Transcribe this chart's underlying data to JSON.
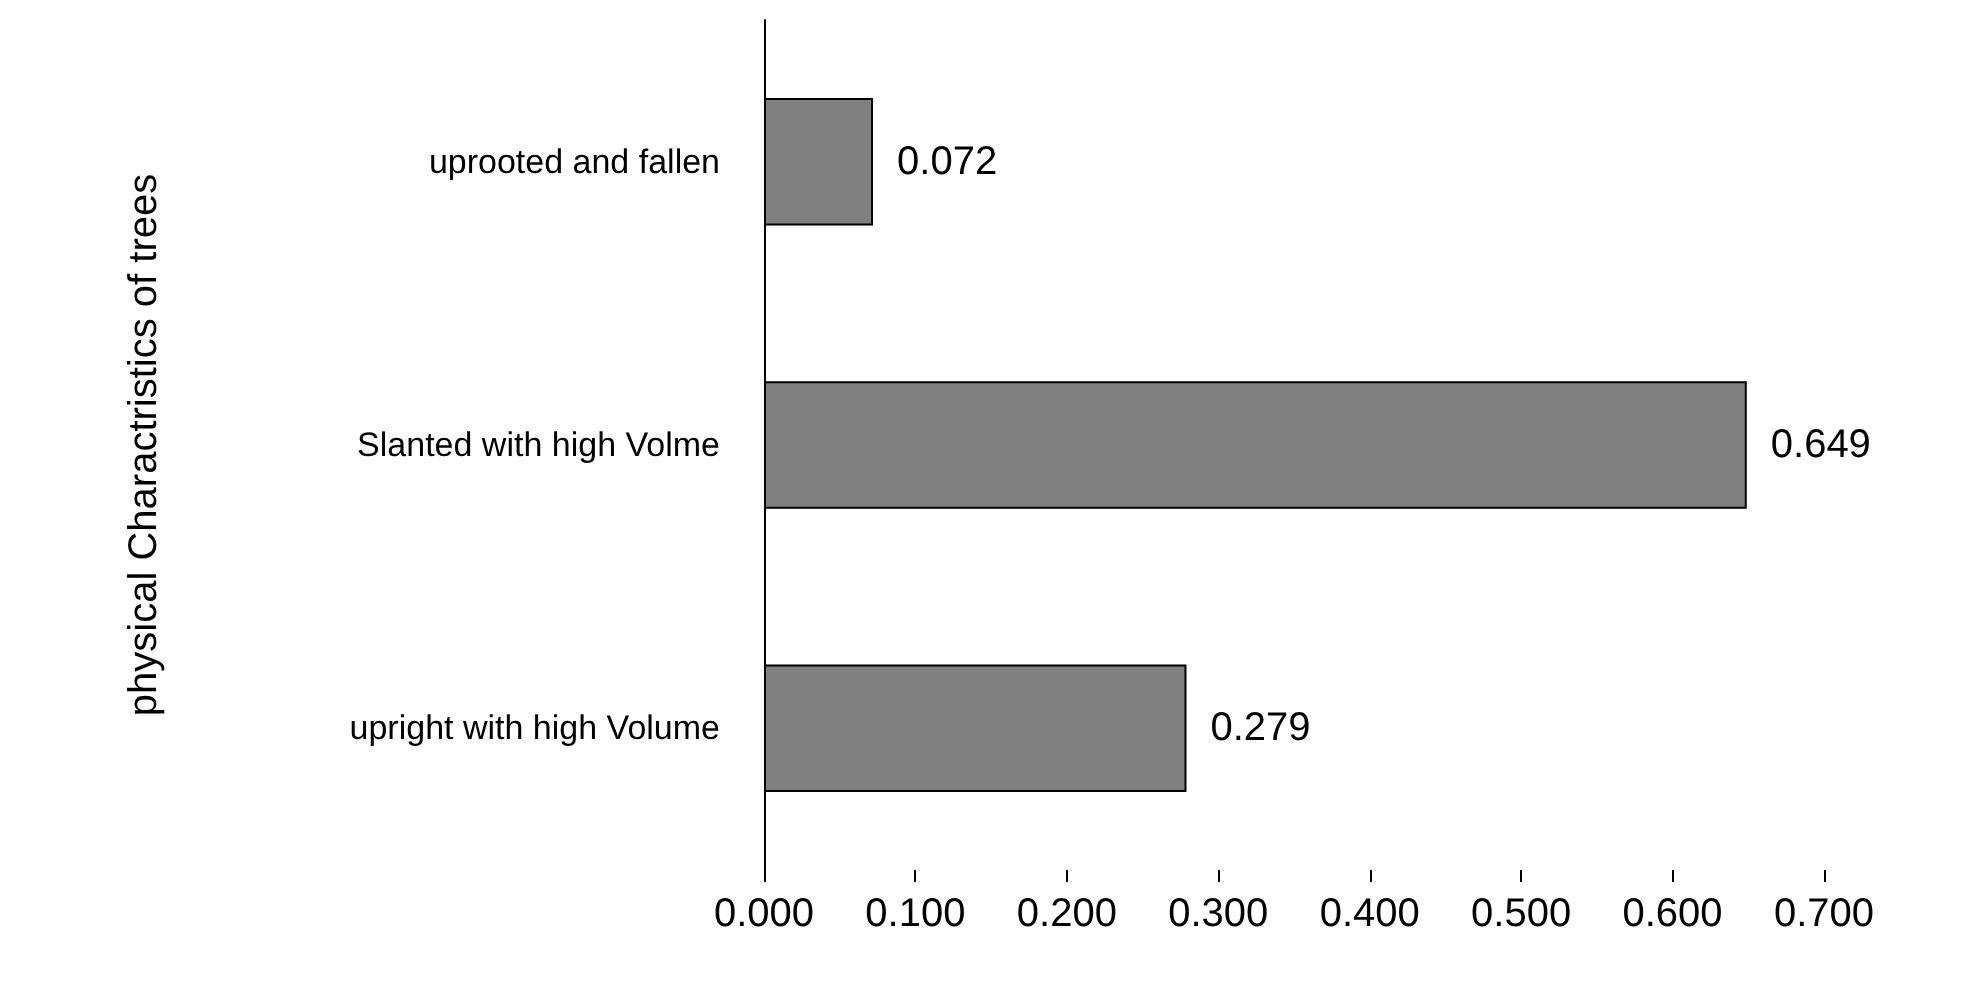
{
  "chart_data": {
    "type": "bar",
    "orientation": "horizontal",
    "ylabel": "physical Charactristics of trees",
    "categories": [
      "uprooted and fallen",
      "Slanted with high Volme",
      "upright with high Volume"
    ],
    "values": [
      0.072,
      0.649,
      0.279
    ],
    "color": "#808080",
    "xlim": [
      0,
      0.7
    ],
    "xticks": [
      {
        "value": 0,
        "label": "0.000"
      },
      {
        "value": 0.1,
        "label": "0.100"
      },
      {
        "value": 0.2,
        "label": "0.200"
      },
      {
        "value": 0.3,
        "label": "0.300"
      },
      {
        "value": 0.4,
        "label": "0.400"
      },
      {
        "value": 0.5,
        "label": "0.500"
      },
      {
        "value": 0.6,
        "label": "0.600"
      },
      {
        "value": 0.7,
        "label": "0.700"
      }
    ],
    "data_labels": true,
    "grid": false
  }
}
